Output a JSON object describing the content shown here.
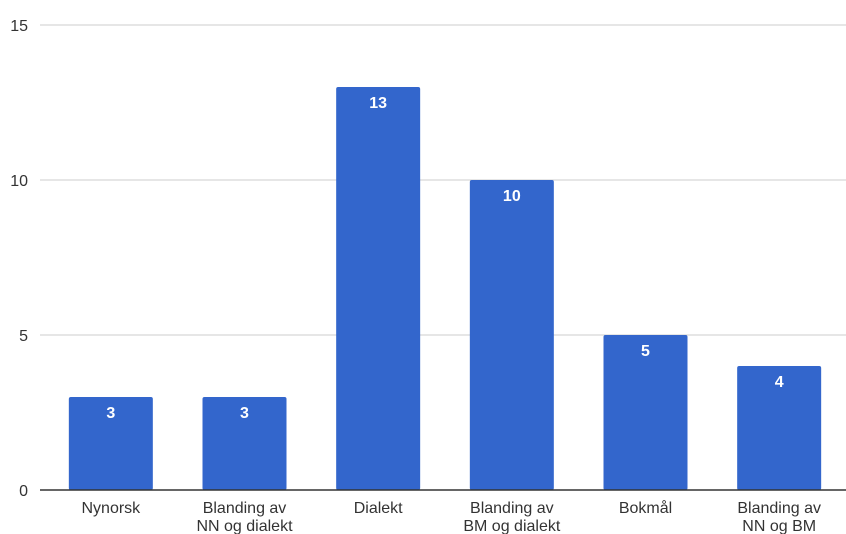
{
  "chart_data": {
    "type": "bar",
    "categories": [
      [
        "Nynorsk"
      ],
      [
        "Blanding av",
        "NN og dialekt"
      ],
      [
        "Dialekt"
      ],
      [
        "Blanding av",
        "BM og dialekt"
      ],
      [
        "Bokmål"
      ],
      [
        "Blanding av",
        "NN og BM"
      ]
    ],
    "values": [
      3,
      3,
      13,
      10,
      5,
      4
    ],
    "data_labels": [
      "3",
      "3",
      "13",
      "10",
      "5",
      "4"
    ],
    "yticks": [
      0,
      5,
      10,
      15
    ],
    "ylim": [
      0,
      15
    ],
    "title": "",
    "xlabel": "",
    "ylabel": "",
    "grid": true,
    "legend": "none",
    "bar_color": "#3366cc"
  }
}
